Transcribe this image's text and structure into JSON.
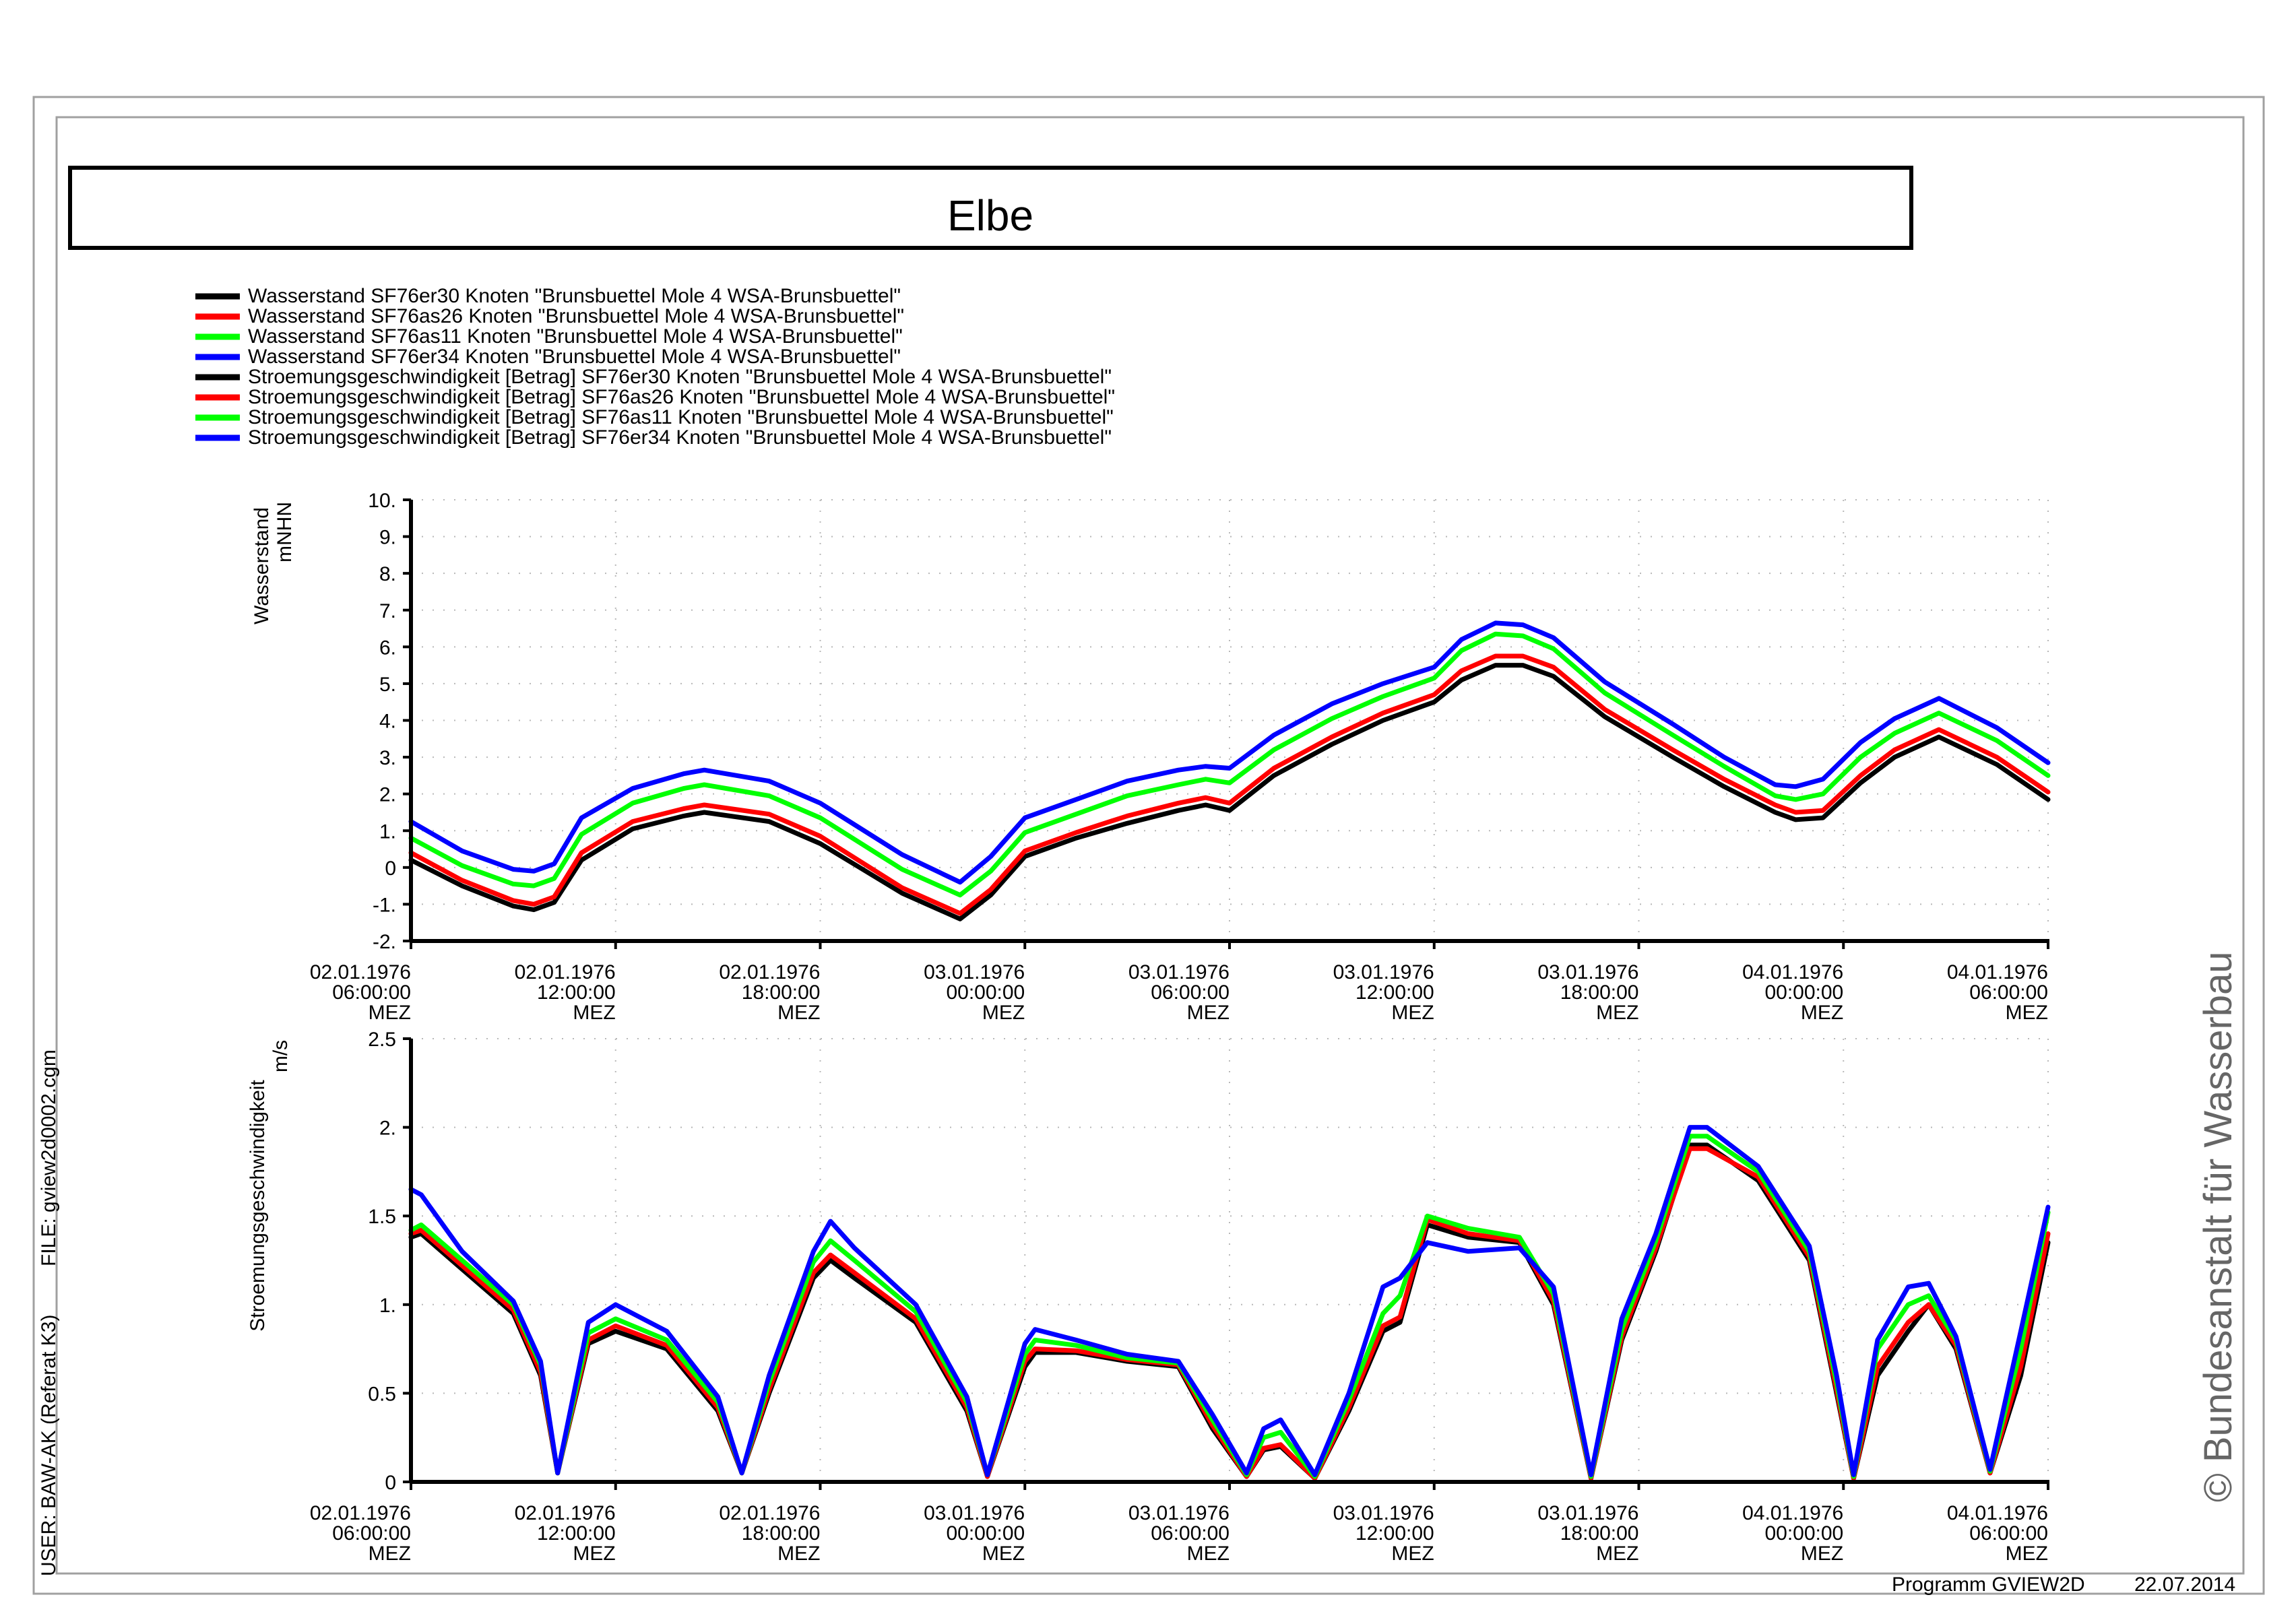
{
  "page": {
    "title": "Elbe",
    "side_user": "USER: BAW-AK (Referat K3)",
    "side_file": "FILE: gview2d0002.cgm",
    "copyright": "© Bundesanstalt für Wasserbau",
    "footer_program": "Programm GVIEW2D",
    "footer_date": "22.07.2014"
  },
  "legend": [
    {
      "label": "Wasserstand SF76er30 Knoten \"Brunsbuettel Mole 4 WSA-Brunsbuettel\"",
      "color": "#000000"
    },
    {
      "label": "Wasserstand SF76as26 Knoten \"Brunsbuettel Mole 4 WSA-Brunsbuettel\"",
      "color": "#ff0000"
    },
    {
      "label": "Wasserstand SF76as11 Knoten \"Brunsbuettel Mole 4 WSA-Brunsbuettel\"",
      "color": "#00ff00"
    },
    {
      "label": "Wasserstand SF76er34 Knoten \"Brunsbuettel Mole 4 WSA-Brunsbuettel\"",
      "color": "#0000ff"
    },
    {
      "label": "Stroemungsgeschwindigkeit [Betrag] SF76er30 Knoten \"Brunsbuettel Mole 4 WSA-Brunsbuettel\"",
      "color": "#000000"
    },
    {
      "label": "Stroemungsgeschwindigkeit [Betrag] SF76as26 Knoten \"Brunsbuettel Mole 4 WSA-Brunsbuettel\"",
      "color": "#ff0000"
    },
    {
      "label": "Stroemungsgeschwindigkeit [Betrag] SF76as11 Knoten \"Brunsbuettel Mole 4 WSA-Brunsbuettel\"",
      "color": "#00ff00"
    },
    {
      "label": "Stroemungsgeschwindigkeit [Betrag] SF76er34 Knoten \"Brunsbuettel Mole 4 WSA-Brunsbuettel\"",
      "color": "#0000ff"
    }
  ],
  "chart_data": [
    {
      "type": "line",
      "ylabel": "Wasserstand",
      "yunit": "mNHN",
      "ylim": [
        -2,
        10
      ],
      "y_ticks": [
        "-2.",
        "-1.",
        "0",
        "1.",
        "2.",
        "3.",
        "4.",
        "5.",
        "6.",
        "7.",
        "8.",
        "9.",
        "10."
      ],
      "xlim": [
        0,
        48
      ],
      "x_ticks": [
        {
          "date": "02.01.1976",
          "time": "06:00:00",
          "tz": "MEZ"
        },
        {
          "date": "02.01.1976",
          "time": "12:00:00",
          "tz": "MEZ"
        },
        {
          "date": "02.01.1976",
          "time": "18:00:00",
          "tz": "MEZ"
        },
        {
          "date": "03.01.1976",
          "time": "00:00:00",
          "tz": "MEZ"
        },
        {
          "date": "03.01.1976",
          "time": "06:00:00",
          "tz": "MEZ"
        },
        {
          "date": "03.01.1976",
          "time": "12:00:00",
          "tz": "MEZ"
        },
        {
          "date": "03.01.1976",
          "time": "18:00:00",
          "tz": "MEZ"
        },
        {
          "date": "04.01.1976",
          "time": "00:00:00",
          "tz": "MEZ"
        },
        {
          "date": "04.01.1976",
          "time": "06:00:00",
          "tz": "MEZ"
        }
      ],
      "grid": true,
      "series": [
        {
          "name": "SF76er30",
          "color": "#000000",
          "x": [
            0,
            1.5,
            3,
            3.6,
            4.2,
            5,
            6.5,
            8,
            8.6,
            10.5,
            12,
            14.4,
            16.1,
            17,
            18,
            19.5,
            21,
            22.5,
            23.3,
            24,
            25.3,
            27,
            28.5,
            30,
            30.8,
            31.8,
            32.6,
            33.5,
            35,
            37,
            38.5,
            40,
            40.6,
            41.4,
            42.5,
            43.5,
            44.8,
            46.5,
            48
          ],
          "y": [
            0.2,
            -0.5,
            -1.05,
            -1.15,
            -0.95,
            0.2,
            1.05,
            1.4,
            1.5,
            1.25,
            0.65,
            -0.7,
            -1.4,
            -0.75,
            0.3,
            0.8,
            1.2,
            1.55,
            1.7,
            1.55,
            2.5,
            3.35,
            4.0,
            4.5,
            5.1,
            5.5,
            5.5,
            5.2,
            4.1,
            3.0,
            2.2,
            1.5,
            1.3,
            1.35,
            2.3,
            3.0,
            3.55,
            2.8,
            1.85
          ]
        },
        {
          "name": "SF76as26",
          "color": "#ff0000",
          "x": [
            0,
            1.5,
            3,
            3.6,
            4.2,
            5,
            6.5,
            8,
            8.6,
            10.5,
            12,
            14.4,
            16.1,
            17,
            18,
            19.5,
            21,
            22.5,
            23.3,
            24,
            25.3,
            27,
            28.5,
            30,
            30.8,
            31.8,
            32.6,
            33.5,
            35,
            37,
            38.5,
            40,
            40.6,
            41.4,
            42.5,
            43.5,
            44.8,
            46.5,
            48
          ],
          "y": [
            0.4,
            -0.35,
            -0.9,
            -1.0,
            -0.8,
            0.4,
            1.25,
            1.6,
            1.7,
            1.45,
            0.85,
            -0.55,
            -1.25,
            -0.6,
            0.45,
            0.95,
            1.4,
            1.75,
            1.9,
            1.75,
            2.7,
            3.55,
            4.2,
            4.7,
            5.35,
            5.75,
            5.75,
            5.45,
            4.3,
            3.2,
            2.4,
            1.7,
            1.5,
            1.55,
            2.5,
            3.2,
            3.75,
            3.0,
            2.05
          ]
        },
        {
          "name": "SF76as11",
          "color": "#00ff00",
          "x": [
            0,
            1.5,
            3,
            3.6,
            4.2,
            5,
            6.5,
            8,
            8.6,
            10.5,
            12,
            14.4,
            16.1,
            17,
            18,
            19.5,
            21,
            22.5,
            23.3,
            24,
            25.3,
            27,
            28.5,
            30,
            30.8,
            31.8,
            32.6,
            33.5,
            35,
            37,
            38.5,
            40,
            40.6,
            41.4,
            42.5,
            43.5,
            44.8,
            46.5,
            48
          ],
          "y": [
            0.8,
            0.05,
            -0.45,
            -0.5,
            -0.3,
            0.9,
            1.75,
            2.15,
            2.25,
            1.95,
            1.35,
            -0.05,
            -0.75,
            -0.1,
            0.95,
            1.45,
            1.95,
            2.25,
            2.4,
            2.3,
            3.2,
            4.05,
            4.65,
            5.15,
            5.9,
            6.35,
            6.3,
            5.95,
            4.75,
            3.6,
            2.75,
            1.95,
            1.85,
            2.0,
            3.0,
            3.65,
            4.2,
            3.45,
            2.5
          ]
        },
        {
          "name": "SF76er34",
          "color": "#0000ff",
          "x": [
            0,
            1.5,
            3,
            3.6,
            4.2,
            5,
            6.5,
            8,
            8.6,
            10.5,
            12,
            14.4,
            16.1,
            17,
            18,
            19.5,
            21,
            22.5,
            23.3,
            24,
            25.3,
            27,
            28.5,
            30,
            30.8,
            31.8,
            32.6,
            33.5,
            35,
            37,
            38.5,
            40,
            40.6,
            41.4,
            42.5,
            43.5,
            44.8,
            46.5,
            48
          ],
          "y": [
            1.25,
            0.45,
            -0.05,
            -0.1,
            0.1,
            1.35,
            2.15,
            2.55,
            2.65,
            2.35,
            1.75,
            0.35,
            -0.4,
            0.3,
            1.35,
            1.85,
            2.35,
            2.65,
            2.75,
            2.7,
            3.6,
            4.45,
            5.0,
            5.45,
            6.2,
            6.65,
            6.6,
            6.25,
            5.05,
            3.9,
            3.0,
            2.25,
            2.2,
            2.4,
            3.4,
            4.05,
            4.6,
            3.8,
            2.85
          ]
        }
      ]
    },
    {
      "type": "line",
      "ylabel": "Stroemungsgeschwindigkeit",
      "yunit": "m/s",
      "ylim": [
        0,
        2.5
      ],
      "y_ticks": [
        "0",
        "0.5",
        "1.",
        "1.5",
        "2.",
        "2.5"
      ],
      "xlim": [
        0,
        48
      ],
      "x_ticks": [
        {
          "date": "02.01.1976",
          "time": "06:00:00",
          "tz": "MEZ"
        },
        {
          "date": "02.01.1976",
          "time": "12:00:00",
          "tz": "MEZ"
        },
        {
          "date": "02.01.1976",
          "time": "18:00:00",
          "tz": "MEZ"
        },
        {
          "date": "03.01.1976",
          "time": "00:00:00",
          "tz": "MEZ"
        },
        {
          "date": "03.01.1976",
          "time": "06:00:00",
          "tz": "MEZ"
        },
        {
          "date": "03.01.1976",
          "time": "12:00:00",
          "tz": "MEZ"
        },
        {
          "date": "03.01.1976",
          "time": "18:00:00",
          "tz": "MEZ"
        },
        {
          "date": "04.01.1976",
          "time": "00:00:00",
          "tz": "MEZ"
        },
        {
          "date": "04.01.1976",
          "time": "06:00:00",
          "tz": "MEZ"
        }
      ],
      "grid": true,
      "series": [
        {
          "name": "SF76er30",
          "color": "#000000",
          "x": [
            0,
            0.3,
            1.5,
            3,
            3.8,
            4.3,
            5.2,
            6,
            7.5,
            9,
            9.7,
            10.5,
            11.8,
            12.3,
            13,
            14.8,
            16.3,
            16.9,
            18,
            18.3,
            19.5,
            21,
            22.5,
            23.5,
            24.5,
            25,
            25.5,
            26.5,
            27.5,
            28.5,
            29,
            29.8,
            31,
            32.5,
            33.5,
            34.6,
            35.5,
            36.5,
            37.5,
            38,
            39.5,
            41,
            41.8,
            42.3,
            43,
            43.9,
            44.5,
            45.3,
            46.3,
            47.2,
            48
          ],
          "y": [
            1.38,
            1.4,
            1.2,
            0.95,
            0.6,
            0.05,
            0.78,
            0.85,
            0.75,
            0.4,
            0.05,
            0.5,
            1.15,
            1.25,
            1.15,
            0.9,
            0.4,
            0.03,
            0.65,
            0.73,
            0.73,
            0.68,
            0.65,
            0.3,
            0.03,
            0.18,
            0.2,
            0.02,
            0.4,
            0.85,
            0.9,
            1.45,
            1.38,
            1.35,
            1.0,
            0.02,
            0.8,
            1.3,
            1.9,
            1.9,
            1.7,
            1.25,
            0.5,
            0.02,
            0.6,
            0.85,
            1.0,
            0.75,
            0.05,
            0.6,
            1.35
          ]
        },
        {
          "name": "SF76as26",
          "color": "#ff0000",
          "x": [
            0,
            0.3,
            1.5,
            3,
            3.8,
            4.3,
            5.2,
            6,
            7.5,
            9,
            9.7,
            10.5,
            11.8,
            12.3,
            13,
            14.8,
            16.3,
            16.9,
            18,
            18.3,
            19.5,
            21,
            22.5,
            23.5,
            24.5,
            25,
            25.5,
            26.5,
            27.5,
            28.5,
            29,
            29.8,
            31,
            32.5,
            33.5,
            34.6,
            35.5,
            36.5,
            37.5,
            38,
            39.5,
            41,
            41.8,
            42.3,
            43,
            43.9,
            44.5,
            45.3,
            46.3,
            47.2,
            48
          ],
          "y": [
            1.4,
            1.42,
            1.22,
            0.97,
            0.62,
            0.05,
            0.8,
            0.88,
            0.77,
            0.42,
            0.05,
            0.52,
            1.18,
            1.28,
            1.18,
            0.92,
            0.42,
            0.03,
            0.68,
            0.75,
            0.74,
            0.69,
            0.66,
            0.32,
            0.03,
            0.19,
            0.21,
            0.02,
            0.42,
            0.88,
            0.93,
            1.48,
            1.4,
            1.36,
            1.02,
            0.02,
            0.82,
            1.32,
            1.88,
            1.88,
            1.72,
            1.27,
            0.52,
            0.02,
            0.65,
            0.9,
            1.0,
            0.77,
            0.05,
            0.65,
            1.4
          ]
        },
        {
          "name": "SF76as11",
          "color": "#00ff00",
          "x": [
            0,
            0.3,
            1.5,
            3,
            3.8,
            4.3,
            5.2,
            6,
            7.5,
            9,
            9.7,
            10.5,
            11.8,
            12.3,
            13,
            14.8,
            16.3,
            16.9,
            18,
            18.3,
            19.5,
            21,
            22.5,
            23.5,
            24.5,
            25,
            25.5,
            26.5,
            27.5,
            28.5,
            29,
            29.8,
            31,
            32.5,
            33.5,
            34.6,
            35.5,
            36.5,
            37.5,
            38,
            39.5,
            41,
            41.8,
            42.3,
            43,
            43.9,
            44.5,
            45.3,
            46.3,
            47.2,
            48
          ],
          "y": [
            1.42,
            1.45,
            1.25,
            1.0,
            0.66,
            0.05,
            0.84,
            0.92,
            0.8,
            0.45,
            0.05,
            0.56,
            1.24,
            1.36,
            1.25,
            0.96,
            0.45,
            0.04,
            0.72,
            0.8,
            0.77,
            0.7,
            0.67,
            0.35,
            0.04,
            0.25,
            0.28,
            0.03,
            0.46,
            0.95,
            1.05,
            1.5,
            1.43,
            1.38,
            1.06,
            0.03,
            0.86,
            1.36,
            1.95,
            1.95,
            1.75,
            1.3,
            0.56,
            0.03,
            0.75,
            1.0,
            1.05,
            0.8,
            0.06,
            0.75,
            1.52
          ]
        },
        {
          "name": "SF76er34",
          "color": "#0000ff",
          "x": [
            0,
            0.3,
            1.5,
            3,
            3.8,
            4.3,
            5.2,
            6,
            7.5,
            9,
            9.7,
            10.5,
            11.8,
            12.3,
            13,
            14.8,
            16.3,
            16.9,
            18,
            18.3,
            19.5,
            21,
            22.5,
            23.5,
            24.5,
            25,
            25.5,
            26.5,
            27.5,
            28.5,
            29,
            29.8,
            31,
            32.5,
            33.5,
            34.6,
            35.5,
            36.5,
            37.5,
            38,
            39.5,
            41,
            41.8,
            42.3,
            43,
            43.9,
            44.5,
            45.3,
            46.3,
            47.2,
            48
          ],
          "y": [
            1.65,
            1.62,
            1.3,
            1.02,
            0.68,
            0.05,
            0.9,
            1.0,
            0.85,
            0.48,
            0.05,
            0.6,
            1.3,
            1.47,
            1.32,
            1.0,
            0.48,
            0.04,
            0.78,
            0.86,
            0.8,
            0.72,
            0.68,
            0.38,
            0.05,
            0.3,
            0.35,
            0.04,
            0.5,
            1.1,
            1.15,
            1.35,
            1.3,
            1.32,
            1.1,
            0.04,
            0.92,
            1.4,
            2.0,
            2.0,
            1.78,
            1.33,
            0.6,
            0.04,
            0.8,
            1.1,
            1.12,
            0.82,
            0.07,
            0.85,
            1.55
          ]
        }
      ]
    }
  ]
}
